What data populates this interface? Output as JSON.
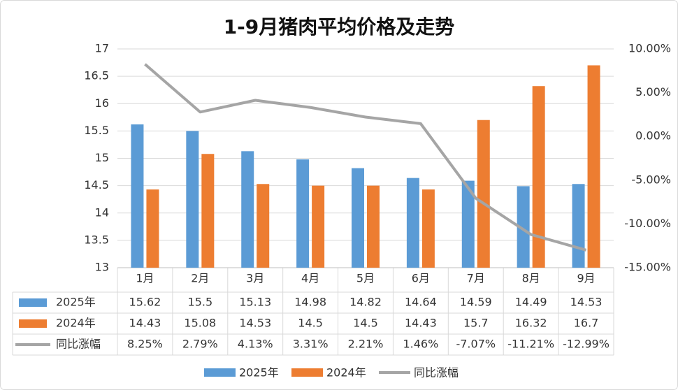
{
  "chart_data": {
    "type": "bar",
    "title": "1-9月猪肉平均价格及走势",
    "categories": [
      "1月",
      "2月",
      "3月",
      "4月",
      "5月",
      "6月",
      "7月",
      "8月",
      "9月"
    ],
    "series": [
      {
        "name": "2025年",
        "type": "bar",
        "color": "#5b9bd5",
        "values": [
          15.62,
          15.5,
          15.13,
          14.98,
          14.82,
          14.64,
          14.59,
          14.49,
          14.53
        ]
      },
      {
        "name": "2024年",
        "type": "bar",
        "color": "#ed7d31",
        "values": [
          14.43,
          15.08,
          14.53,
          14.5,
          14.5,
          14.43,
          15.7,
          16.32,
          16.7
        ]
      },
      {
        "name": "同比涨幅",
        "type": "line",
        "axis": "y2",
        "color": "#a5a5a5",
        "values": [
          8.25,
          2.79,
          4.13,
          3.31,
          2.21,
          1.46,
          -7.07,
          -11.21,
          -12.99
        ],
        "value_labels": [
          "8.25%",
          "2.79%",
          "4.13%",
          "3.31%",
          "2.21%",
          "1.46%",
          "-7.07%",
          "-11.21%",
          "-12.99%"
        ]
      }
    ],
    "ylim": [
      13,
      17
    ],
    "yticks": [
      13,
      13.5,
      14,
      14.5,
      15,
      15.5,
      16,
      16.5,
      17
    ],
    "y2lim": [
      -15,
      10
    ],
    "y2ticks": [
      {
        "value": -15,
        "label": "-15.00%"
      },
      {
        "value": -10,
        "label": "-10.00%"
      },
      {
        "value": -5,
        "label": "-5.00%"
      },
      {
        "value": 0,
        "label": "0.00%"
      },
      {
        "value": 5,
        "label": "5.00%"
      },
      {
        "value": 10,
        "label": "10.00%"
      }
    ],
    "grid": true,
    "legend": "bottom",
    "data_table": true
  }
}
